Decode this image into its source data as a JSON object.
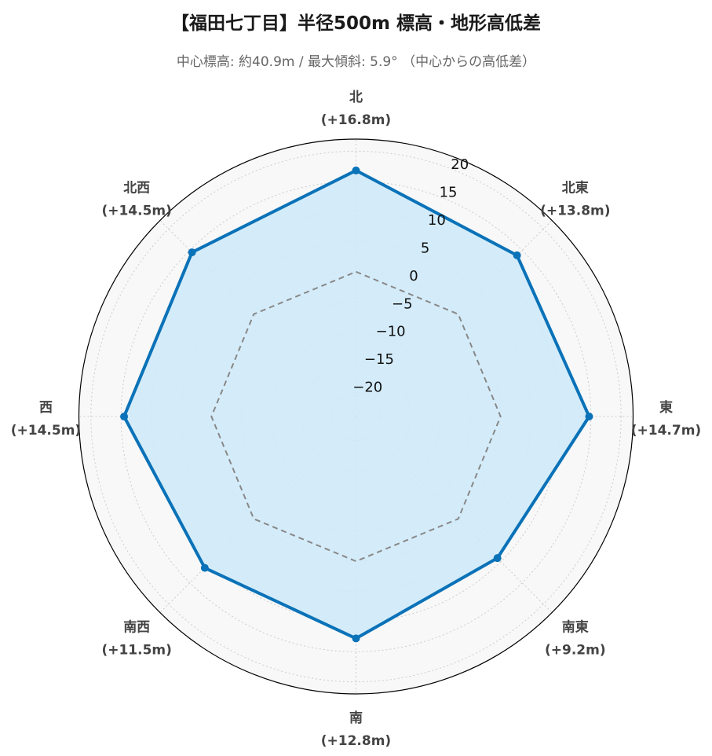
{
  "title": "【福田七丁目】半径500m 標高・地形高低差",
  "subtitle": "中心標高: 約40.9m / 最大傾斜: 5.9° （中心からの高低差）",
  "colors": {
    "series_line": "#0a72b8",
    "series_fill": "#cfeaf8",
    "baseline": "#888888",
    "grid": "#cccccc",
    "plot_bg": "#f8f8f8",
    "outline": "#000000"
  },
  "chart_data": {
    "type": "radar",
    "categories": [
      "北",
      "北東",
      "東",
      "南東",
      "南",
      "南西",
      "西",
      "北西"
    ],
    "category_value_labels": [
      "(+16.8m)",
      "(+13.8m)",
      "(+14.7m)",
      "(+9.2m)",
      "(+12.8m)",
      "(+11.5m)",
      "(+14.5m)",
      "(+14.5m)"
    ],
    "series": [
      {
        "values": [
          16.8,
          13.8,
          14.7,
          9.2,
          12.8,
          11.5,
          14.5,
          14.5
        ]
      },
      {
        "values": [
          0,
          0,
          0,
          0,
          0,
          0,
          0,
          0
        ],
        "style": "dashed"
      }
    ],
    "radial_ticks": [
      -20,
      -15,
      -10,
      -5,
      0,
      5,
      10,
      15,
      20
    ],
    "radial_tick_labels": [
      "−20",
      "−15",
      "−10",
      "−5",
      "0",
      "5",
      "10",
      "15",
      "20"
    ],
    "rlim": [
      -24,
      22
    ],
    "grid": true
  }
}
